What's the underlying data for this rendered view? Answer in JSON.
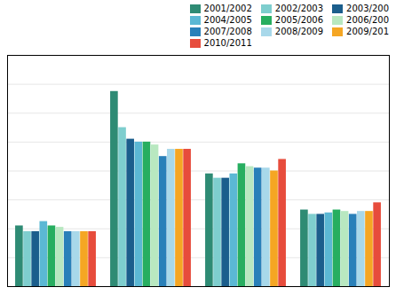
{
  "chart_data": {
    "type": "bar",
    "categories": [
      null,
      null,
      null,
      null
    ],
    "series": [
      {
        "name": "2001/2002",
        "color": "#2E8B74",
        "values": [
          4.2,
          13.5,
          7.8,
          5.3
        ]
      },
      {
        "name": "2002/2003",
        "color": "#7ECECE",
        "values": [
          3.8,
          11.0,
          7.5,
          5.0
        ]
      },
      {
        "name": "2003/200",
        "color": "#1B5E8C",
        "values": [
          3.8,
          10.2,
          7.5,
          5.0
        ]
      },
      {
        "name": "2004/2005",
        "color": "#5BB8D4",
        "values": [
          4.5,
          10.0,
          7.8,
          5.1
        ]
      },
      {
        "name": "2005/2006",
        "color": "#27AE60",
        "values": [
          4.2,
          10.0,
          8.5,
          5.3
        ]
      },
      {
        "name": "2006/200",
        "color": "#B8E8C0",
        "values": [
          4.1,
          9.8,
          8.3,
          5.2
        ]
      },
      {
        "name": "2007/2008",
        "color": "#2980B9",
        "values": [
          3.8,
          9.0,
          8.2,
          5.0
        ]
      },
      {
        "name": "2008/2009",
        "color": "#A8D8EA",
        "values": [
          3.8,
          9.5,
          8.2,
          5.2
        ]
      },
      {
        "name": "2009/201",
        "color": "#F5A623",
        "values": [
          3.8,
          9.5,
          8.0,
          5.2
        ]
      },
      {
        "name": "2010/2011",
        "color": "#E74C3C",
        "values": [
          3.8,
          9.5,
          8.8,
          5.8
        ]
      }
    ],
    "ylim": [
      0,
      16
    ],
    "yticks": [
      0,
      2,
      4,
      6,
      8,
      10,
      12,
      14,
      16
    ],
    "grid": true,
    "legend": "upper right",
    "tick_labels": false
  }
}
